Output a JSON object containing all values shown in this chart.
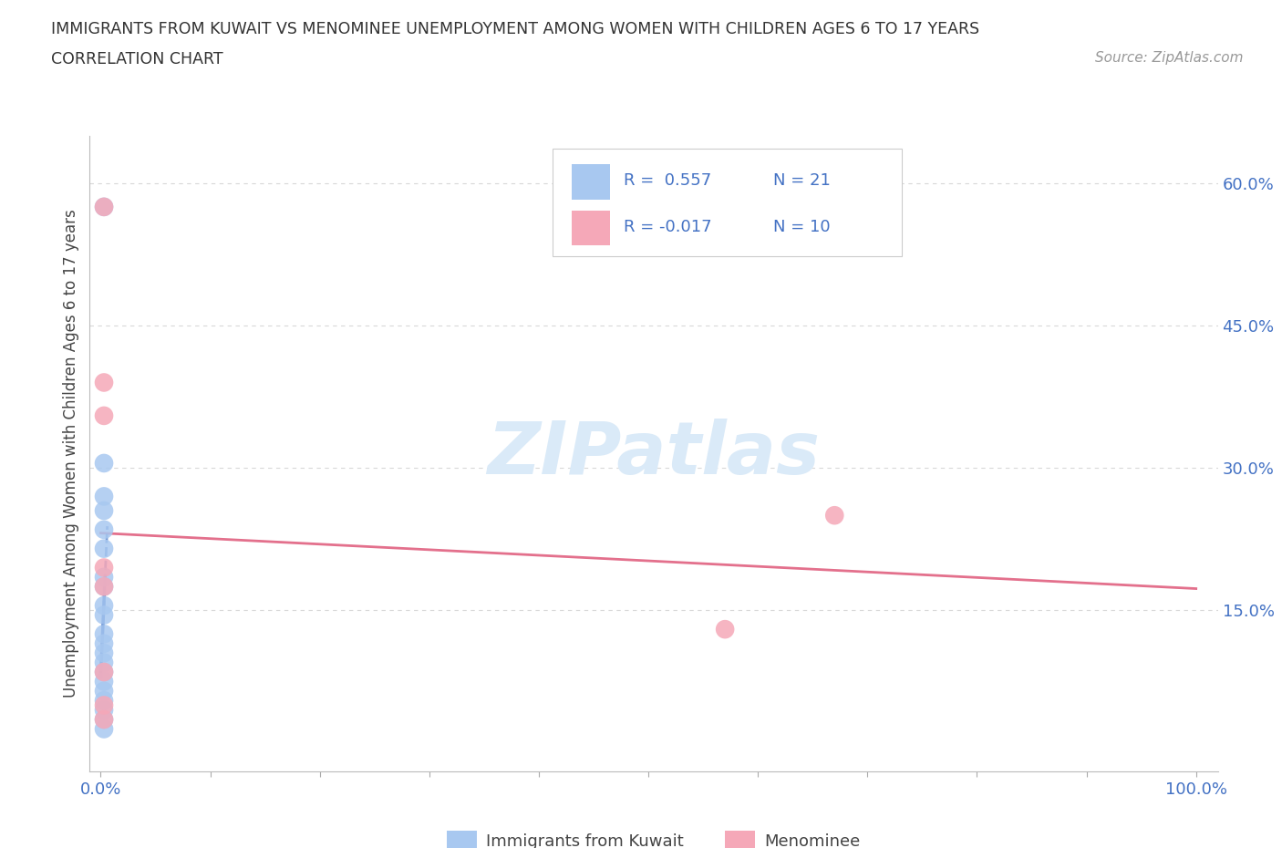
{
  "title": "IMMIGRANTS FROM KUWAIT VS MENOMINEE UNEMPLOYMENT AMONG WOMEN WITH CHILDREN AGES 6 TO 17 YEARS",
  "subtitle": "CORRELATION CHART",
  "source": "Source: ZipAtlas.com",
  "ylabel": "Unemployment Among Women with Children Ages 6 to 17 years",
  "xlim": [
    -0.01,
    1.02
  ],
  "ylim": [
    -0.02,
    0.65
  ],
  "xticks": [
    0.0,
    0.1,
    0.2,
    0.3,
    0.4,
    0.5,
    0.6,
    0.7,
    0.8,
    0.9,
    1.0
  ],
  "xticklabels": [
    "0.0%",
    "",
    "",
    "",
    "",
    "",
    "",
    "",
    "",
    "",
    "100.0%"
  ],
  "yticks": [
    0.15,
    0.3,
    0.45,
    0.6
  ],
  "yticklabels": [
    "15.0%",
    "30.0%",
    "45.0%",
    "60.0%"
  ],
  "blue_scatter_x": [
    0.003,
    0.003,
    0.003,
    0.003,
    0.003,
    0.003,
    0.003,
    0.003,
    0.003,
    0.003,
    0.003,
    0.003,
    0.003,
    0.003,
    0.003,
    0.003,
    0.003,
    0.003,
    0.003,
    0.003,
    0.003
  ],
  "blue_scatter_y": [
    0.575,
    0.305,
    0.27,
    0.255,
    0.235,
    0.215,
    0.185,
    0.175,
    0.155,
    0.145,
    0.125,
    0.115,
    0.105,
    0.095,
    0.085,
    0.075,
    0.065,
    0.055,
    0.045,
    0.035,
    0.025
  ],
  "pink_scatter_x": [
    0.003,
    0.003,
    0.003,
    0.003,
    0.003,
    0.003,
    0.003,
    0.57,
    0.003,
    0.67
  ],
  "pink_scatter_y": [
    0.575,
    0.39,
    0.355,
    0.195,
    0.175,
    0.085,
    0.05,
    0.13,
    0.035,
    0.25
  ],
  "blue_color": "#a8c8f0",
  "pink_color": "#f5a8b8",
  "blue_line_color": "#4472c4",
  "pink_line_color": "#e06080",
  "watermark_color": "#daeaf8",
  "legend_r_blue": "R =  0.557",
  "legend_n_blue": "N = 21",
  "legend_r_pink": "R = -0.017",
  "legend_n_pink": "N = 10",
  "legend_label_blue": "Immigrants from Kuwait",
  "legend_label_pink": "Menominee",
  "background_color": "#ffffff",
  "grid_color": "#d8d8d8"
}
